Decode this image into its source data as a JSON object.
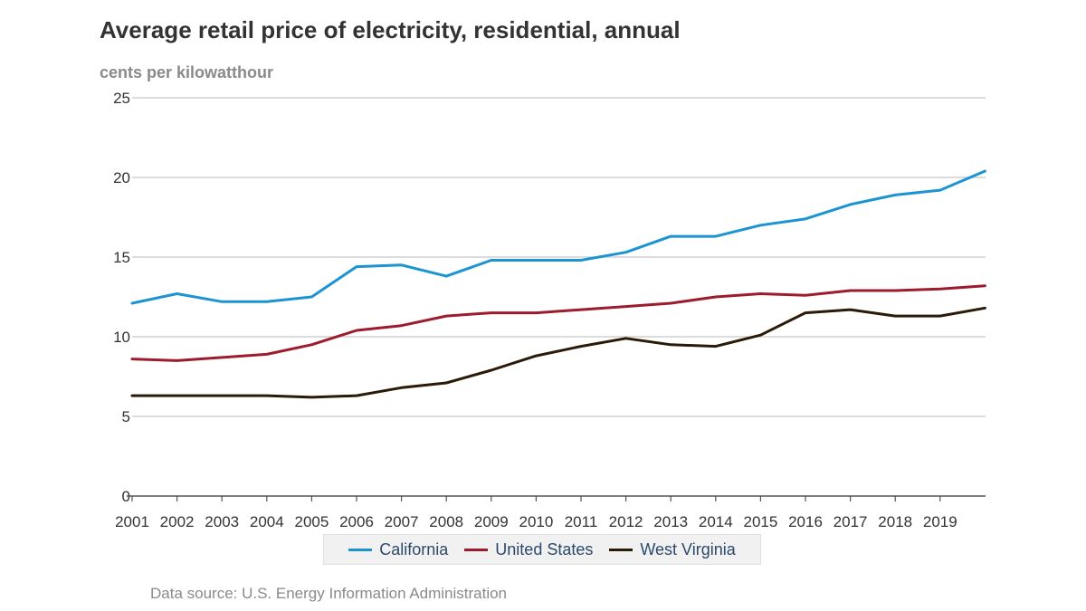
{
  "chart_data": {
    "type": "line",
    "title": "Average retail price of electricity, residential, annual",
    "ylabel": "cents per kilowatthour",
    "xlabel": "",
    "x": [
      2001,
      2002,
      2003,
      2004,
      2005,
      2006,
      2007,
      2008,
      2009,
      2010,
      2011,
      2012,
      2013,
      2014,
      2015,
      2016,
      2017,
      2018,
      2019,
      2020
    ],
    "x_tick_labels": [
      "2001",
      "2002",
      "2003",
      "2004",
      "2005",
      "2006",
      "2007",
      "2008",
      "2009",
      "2010",
      "2011",
      "2012",
      "2013",
      "2014",
      "2015",
      "2016",
      "2017",
      "2018",
      "2019"
    ],
    "ylim": [
      0,
      25
    ],
    "y_ticks": [
      0,
      5,
      10,
      15,
      20,
      25
    ],
    "grid": "horizontal",
    "legend_position": "bottom",
    "series": [
      {
        "name": "California",
        "color": "#1d94d2",
        "values": [
          12.1,
          12.7,
          12.2,
          12.2,
          12.5,
          14.4,
          14.5,
          13.8,
          14.8,
          14.8,
          14.8,
          15.3,
          16.3,
          16.3,
          17.0,
          17.4,
          18.3,
          18.9,
          19.2,
          20.4
        ]
      },
      {
        "name": "United States",
        "color": "#9c1c2e",
        "values": [
          8.6,
          8.5,
          8.7,
          8.9,
          9.5,
          10.4,
          10.7,
          11.3,
          11.5,
          11.5,
          11.7,
          11.9,
          12.1,
          12.5,
          12.7,
          12.6,
          12.9,
          12.9,
          13.0,
          13.2
        ]
      },
      {
        "name": "West Virginia",
        "color": "#2a1a08",
        "values": [
          6.3,
          6.3,
          6.3,
          6.3,
          6.2,
          6.3,
          6.8,
          7.1,
          7.9,
          8.8,
          9.4,
          9.9,
          9.5,
          9.4,
          10.1,
          11.5,
          11.7,
          11.3,
          11.3,
          11.8
        ]
      }
    ],
    "source": "Data source: U.S. Energy Information Administration"
  }
}
